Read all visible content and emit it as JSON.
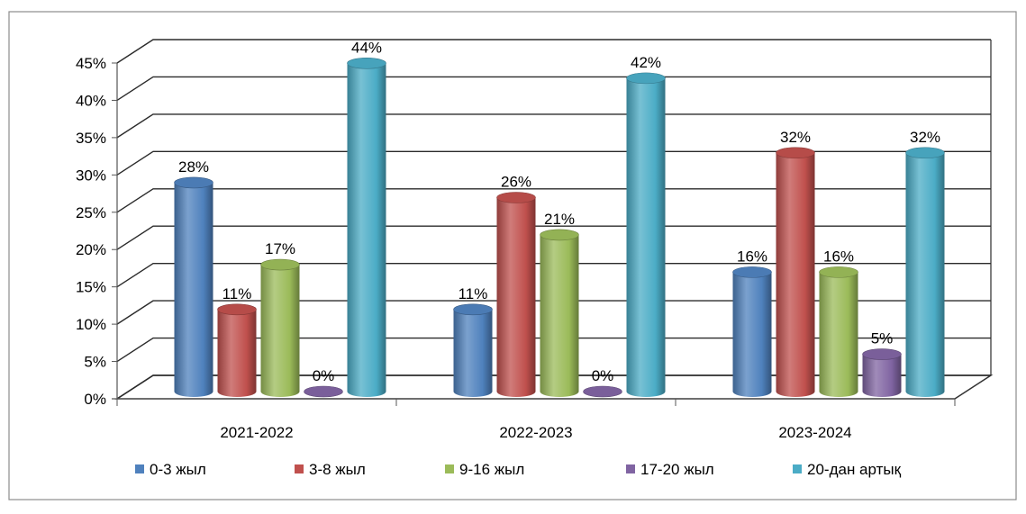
{
  "chart_data": {
    "type": "bar",
    "categories": [
      "2021-2022",
      "2022-2023",
      "2023-2024"
    ],
    "series": [
      {
        "name": "0-3 жыл",
        "values": [
          28,
          11,
          16
        ],
        "labels": [
          "28%",
          "11%",
          "16%"
        ],
        "color": "#4F81BD"
      },
      {
        "name": "3-8 жыл",
        "values": [
          11,
          26,
          32
        ],
        "labels": [
          "11%",
          "26%",
          "32%"
        ],
        "color": "#C0504D"
      },
      {
        "name": "9-16 жыл",
        "values": [
          17,
          21,
          16
        ],
        "labels": [
          "17%",
          "21%",
          "16%"
        ],
        "color": "#9BBB59"
      },
      {
        "name": "17-20 жыл",
        "values": [
          0,
          0,
          5
        ],
        "labels": [
          "0%",
          "0%",
          "5%"
        ],
        "color": "#8064A2"
      },
      {
        "name": "20-дан артық",
        "values": [
          44,
          42,
          32
        ],
        "labels": [
          "44%",
          "42%",
          "32%"
        ],
        "color": "#4BACC6"
      }
    ],
    "yticks": [
      "0%",
      "5%",
      "10%",
      "15%",
      "20%",
      "25%",
      "30%",
      "35%",
      "40%",
      "45%"
    ],
    "ylim": [
      0,
      45
    ],
    "grid": true,
    "legend": "bottom",
    "style": "3d-cylinder"
  }
}
